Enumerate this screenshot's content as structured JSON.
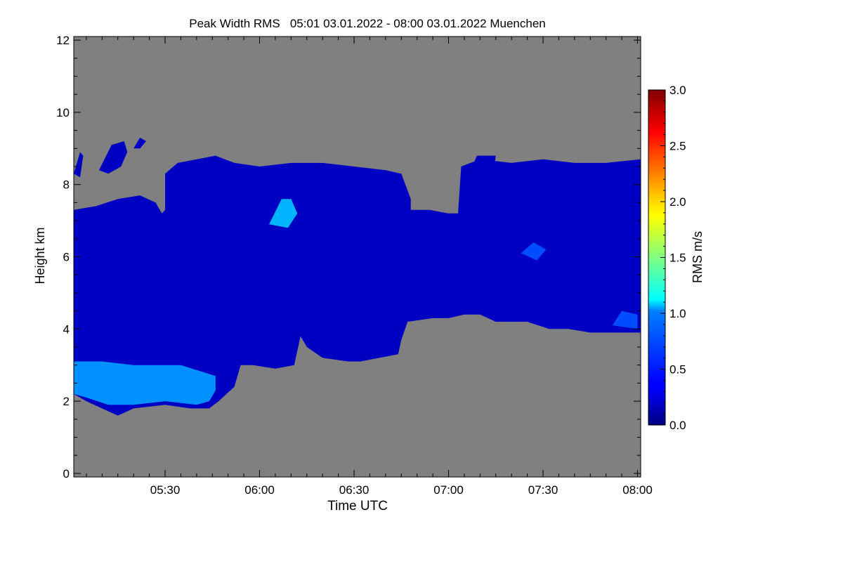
{
  "chart_data": {
    "type": "heatmap",
    "title": "Peak Width RMS   05:01 03.01.2022 - 08:00 03.01.2022 Muenchen",
    "xlabel": "Time UTC",
    "ylabel": "Height km",
    "colorbar_label": "RMS m/s",
    "xlim": [
      "05:01",
      "08:01"
    ],
    "ylim": [
      -0.1,
      12.1
    ],
    "x_tick_labels": [
      "05:30",
      "06:00",
      "06:30",
      "07:00",
      "07:30",
      "08:00"
    ],
    "y_tick_labels": [
      "0",
      "2",
      "4",
      "6",
      "8",
      "10",
      "12"
    ],
    "colorbar_range": [
      0.0,
      3.0
    ],
    "colorbar_tick_labels": [
      "0.0",
      "0.5",
      "1.0",
      "1.5",
      "2.0",
      "2.5",
      "3.0"
    ],
    "colormap": "jet",
    "no_data_color": "#808080",
    "regions": [
      {
        "name": "main_echo",
        "value": 0.2,
        "polygon": [
          [
            "05:01",
            7.3
          ],
          [
            "05:08",
            7.4
          ],
          [
            "05:15",
            7.6
          ],
          [
            "05:22",
            7.7
          ],
          [
            "05:27",
            7.5
          ],
          [
            "05:29",
            7.2
          ],
          [
            "05:30",
            7.3
          ],
          [
            "05:30",
            8.3
          ],
          [
            "05:34",
            8.6
          ],
          [
            "05:40",
            8.7
          ],
          [
            "05:46",
            8.8
          ],
          [
            "05:52",
            8.6
          ],
          [
            "06:00",
            8.5
          ],
          [
            "06:10",
            8.6
          ],
          [
            "06:20",
            8.6
          ],
          [
            "06:30",
            8.5
          ],
          [
            "06:40",
            8.4
          ],
          [
            "06:45",
            8.3
          ],
          [
            "06:48",
            7.6
          ],
          [
            "06:48",
            7.3
          ],
          [
            "06:54",
            7.3
          ],
          [
            "07:00",
            7.2
          ],
          [
            "07:03",
            7.2
          ],
          [
            "07:04",
            8.5
          ],
          [
            "07:10",
            8.7
          ],
          [
            "07:20",
            8.6
          ],
          [
            "07:30",
            8.7
          ],
          [
            "07:40",
            8.6
          ],
          [
            "07:50",
            8.6
          ],
          [
            "08:01",
            8.7
          ],
          [
            "08:01",
            3.9
          ],
          [
            "07:55",
            3.9
          ],
          [
            "07:45",
            3.9
          ],
          [
            "07:38",
            4.0
          ],
          [
            "07:32",
            4.0
          ],
          [
            "07:25",
            4.2
          ],
          [
            "07:15",
            4.2
          ],
          [
            "07:10",
            4.4
          ],
          [
            "07:05",
            4.4
          ],
          [
            "07:00",
            4.3
          ],
          [
            "06:55",
            4.3
          ],
          [
            "06:47",
            4.2
          ],
          [
            "06:45",
            3.7
          ],
          [
            "06:44",
            3.3
          ],
          [
            "06:38",
            3.2
          ],
          [
            "06:32",
            3.1
          ],
          [
            "06:28",
            3.1
          ],
          [
            "06:20",
            3.2
          ],
          [
            "06:15",
            3.5
          ],
          [
            "06:13",
            3.8
          ],
          [
            "06:12",
            3.4
          ],
          [
            "06:11",
            3.0
          ],
          [
            "06:05",
            2.9
          ],
          [
            "05:58",
            3.0
          ],
          [
            "05:54",
            3.0
          ],
          [
            "05:52",
            2.4
          ],
          [
            "05:47",
            2.0
          ],
          [
            "05:44",
            1.8
          ],
          [
            "05:38",
            1.8
          ],
          [
            "05:30",
            1.9
          ],
          [
            "05:20",
            1.8
          ],
          [
            "05:15",
            1.6
          ],
          [
            "05:10",
            1.8
          ],
          [
            "05:05",
            2.0
          ],
          [
            "05:01",
            2.2
          ]
        ]
      },
      {
        "name": "upper_patch_1",
        "value": 0.2,
        "polygon": [
          [
            "05:01",
            8.3
          ],
          [
            "05:03",
            8.9
          ],
          [
            "05:04",
            8.8
          ],
          [
            "05:03",
            8.2
          ]
        ]
      },
      {
        "name": "upper_patch_2",
        "value": 0.2,
        "polygon": [
          [
            "05:09",
            8.4
          ],
          [
            "05:13",
            9.1
          ],
          [
            "05:17",
            9.2
          ],
          [
            "05:18",
            8.9
          ],
          [
            "05:16",
            8.5
          ],
          [
            "05:12",
            8.3
          ]
        ]
      },
      {
        "name": "upper_patch_3",
        "value": 0.2,
        "polygon": [
          [
            "05:20",
            9.0
          ],
          [
            "05:22",
            9.3
          ],
          [
            "05:24",
            9.2
          ],
          [
            "05:22",
            9.0
          ]
        ]
      },
      {
        "name": "upper_patch_4",
        "value": 0.2,
        "polygon": [
          [
            "07:07",
            8.4
          ],
          [
            "07:11",
            8.3
          ],
          [
            "07:14",
            8.2
          ],
          [
            "07:15",
            8.8
          ],
          [
            "07:09",
            8.8
          ]
        ]
      },
      {
        "name": "low_turbulent_layer",
        "value": 0.8,
        "polygon": [
          [
            "05:01",
            2.2
          ],
          [
            "05:05",
            2.1
          ],
          [
            "05:12",
            1.9
          ],
          [
            "05:20",
            1.9
          ],
          [
            "05:30",
            2.0
          ],
          [
            "05:40",
            1.9
          ],
          [
            "05:44",
            2.0
          ],
          [
            "05:46",
            2.3
          ],
          [
            "05:46",
            2.7
          ],
          [
            "05:35",
            3.0
          ],
          [
            "05:20",
            3.0
          ],
          [
            "05:10",
            3.1
          ],
          [
            "05:01",
            3.1
          ]
        ]
      },
      {
        "name": "patch_0605_7km",
        "value": 0.9,
        "polygon": [
          [
            "06:03",
            6.9
          ],
          [
            "06:07",
            7.6
          ],
          [
            "06:10",
            7.6
          ],
          [
            "06:12",
            7.2
          ],
          [
            "06:09",
            6.8
          ]
        ]
      },
      {
        "name": "patch_0727_6km",
        "value": 0.6,
        "polygon": [
          [
            "07:23",
            6.1
          ],
          [
            "07:27",
            6.4
          ],
          [
            "07:31",
            6.2
          ],
          [
            "07:28",
            5.9
          ]
        ]
      },
      {
        "name": "patch_0757_4km",
        "value": 0.6,
        "polygon": [
          [
            "07:52",
            4.1
          ],
          [
            "07:55",
            4.5
          ],
          [
            "08:00",
            4.4
          ],
          [
            "08:00",
            4.0
          ]
        ]
      }
    ]
  }
}
